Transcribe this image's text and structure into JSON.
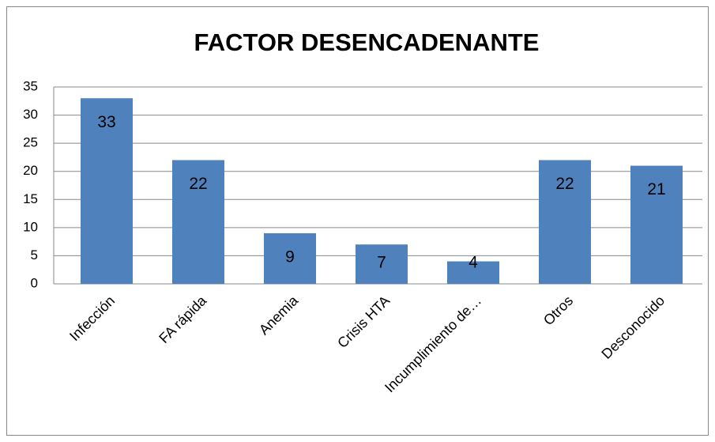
{
  "chart_data": {
    "type": "bar",
    "title": "FACTOR DESENCADENANTE",
    "categories": [
      "Infección",
      "FA rápida",
      "Anemia",
      "Crisis HTA",
      "Incumplimiento de…",
      "Otros",
      "Desconocido"
    ],
    "values": [
      33,
      22,
      9,
      7,
      4,
      22,
      21
    ],
    "color": "#4f81bd",
    "ylim": [
      0,
      35
    ],
    "yticks": [
      0,
      5,
      10,
      15,
      20,
      25,
      30,
      35
    ],
    "grid": true,
    "data_labels": true
  }
}
